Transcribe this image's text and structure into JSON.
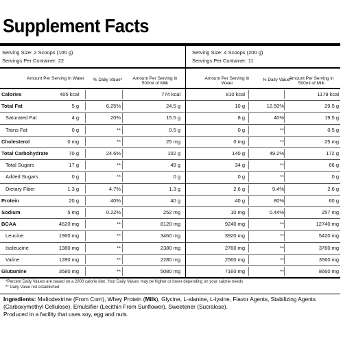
{
  "title": "Supplement Facts",
  "left": {
    "serving_size": "Serving Size: 2 Scoops (100 g)",
    "servings_per_container": "Servings Per Container: 22",
    "col_water": "Amount Per Serving in Water",
    "col_dv": "% Daily Value*",
    "col_milk": "Amount Per Serving in 500ml of Milk"
  },
  "right": {
    "serving_size": "Serving Size: 4 Scoops (200 g)",
    "servings_per_container": "Servings Per Container: 11",
    "col_water": "Amount Per Serving in Water",
    "col_dv": "% Daily Value*",
    "col_milk": "Amount Per Serving in 500ml of Milk"
  },
  "rows": [
    {
      "name": "Calories",
      "bold": true,
      "indent": false,
      "l_water": "405 kcal",
      "l_dv": "",
      "l_milk": "774 kcal",
      "r_water": "810 kcal",
      "r_dv": "",
      "r_milk": "1179 kcal"
    },
    {
      "name": "Total Fat",
      "bold": true,
      "indent": false,
      "l_water": "5 g",
      "l_dv": "6.25%",
      "l_milk": "24.5 g",
      "r_water": "10 g",
      "r_dv": "12.50%",
      "r_milk": "29.5 g"
    },
    {
      "name": "Saturated Fat",
      "bold": false,
      "indent": true,
      "l_water": "4 g",
      "l_dv": "20%",
      "l_milk": "15.5 g",
      "r_water": "8 g",
      "r_dv": "40%",
      "r_milk": "19.5 g"
    },
    {
      "name": "Trans Fat",
      "bold": false,
      "indent": true,
      "l_water": "0 g",
      "l_dv": "**",
      "l_milk": "0.5 g",
      "r_water": "0 g",
      "r_dv": "**",
      "r_milk": "0.5 g"
    },
    {
      "name": "Cholesterol",
      "bold": true,
      "indent": false,
      "l_water": "0 mg",
      "l_dv": "**",
      "l_milk": "25 mg",
      "r_water": "0 mg",
      "r_dv": "**",
      "r_milk": "25 mg"
    },
    {
      "name": "Total Carbohydrate",
      "bold": true,
      "indent": false,
      "l_water": "70 g",
      "l_dv": "24.6%",
      "l_milk": "102 g",
      "r_water": "140 g",
      "r_dv": "49.2%",
      "r_milk": "172 g"
    },
    {
      "name": "Total Sugars",
      "bold": false,
      "indent": true,
      "l_water": "17 g",
      "l_dv": "**",
      "l_milk": "49 g",
      "r_water": "34 g",
      "r_dv": "**",
      "r_milk": "66 g"
    },
    {
      "name": "Added Sugars",
      "bold": false,
      "indent": true,
      "l_water": "0 g",
      "l_dv": "**",
      "l_milk": "0 g",
      "r_water": "0 g",
      "r_dv": "**",
      "r_milk": "0 g"
    },
    {
      "name": "Dietary Fiber",
      "bold": false,
      "indent": true,
      "l_water": "1.3 g",
      "l_dv": "4.7%",
      "l_milk": "1.3 g",
      "r_water": "2.6 g",
      "r_dv": "9.4%",
      "r_milk": "2.6 g"
    },
    {
      "name": "Protein",
      "bold": true,
      "indent": false,
      "l_water": "20 g",
      "l_dv": "40%",
      "l_milk": "40 g",
      "r_water": "40 g",
      "r_dv": "80%",
      "r_milk": "60 g"
    },
    {
      "name": "Sodium",
      "bold": true,
      "indent": false,
      "l_water": "5 mg",
      "l_dv": "0.22%",
      "l_milk": "252 mg",
      "r_water": "10 mg",
      "r_dv": "0.44%",
      "r_milk": "257 mg"
    },
    {
      "name": "BCAA",
      "bold": true,
      "indent": false,
      "l_water": "4620 mg",
      "l_dv": "**",
      "l_milk": "8120 mg",
      "r_water": "9240 mg",
      "r_dv": "**",
      "r_milk": "12740 mg"
    },
    {
      "name": "Leucine",
      "bold": false,
      "indent": true,
      "l_water": "1960 mg",
      "l_dv": "**",
      "l_milk": "3460 mg",
      "r_water": "3920 mg",
      "r_dv": "**",
      "r_milk": "5420 mg"
    },
    {
      "name": "Isoleucine",
      "bold": false,
      "indent": true,
      "l_water": "1380 mg",
      "l_dv": "**",
      "l_milk": "2380 mg",
      "r_water": "2760 mg",
      "r_dv": "**",
      "r_milk": "3760 mg"
    },
    {
      "name": "Valine",
      "bold": false,
      "indent": true,
      "l_water": "1280 mg",
      "l_dv": "**",
      "l_milk": "2280 mg",
      "r_water": "2560 mg",
      "r_dv": "**",
      "r_milk": "3560 mg"
    },
    {
      "name": "Glutamine",
      "bold": true,
      "indent": false,
      "l_water": "3580 mg",
      "l_dv": "**",
      "l_milk": "5080 mg",
      "r_water": "7160 mg",
      "r_dv": "**",
      "r_milk": "8660 mg"
    }
  ],
  "footnote_1": "*Percent Daily Values are based on a 2000 calorie diet. Your Daily Values may be higher or lower depending on your calorie needs",
  "footnote_2": "** Daily Value not established",
  "ingredients": {
    "label": "Ingredients:",
    "text_1": " Maltodextrine (From Corn), Whey Protein (",
    "milk": "Milk",
    "text_2": "), Glycine, L-alanine, L-lysine, Flavor Agents, Stabilizing Agents (Carboxymethyl Cellulose), Emulsifier (Lecithin From Sunflower), Sweetener (Sucralose).",
    "facility": "Produced in a facility that uses soy, egg and nuts."
  }
}
